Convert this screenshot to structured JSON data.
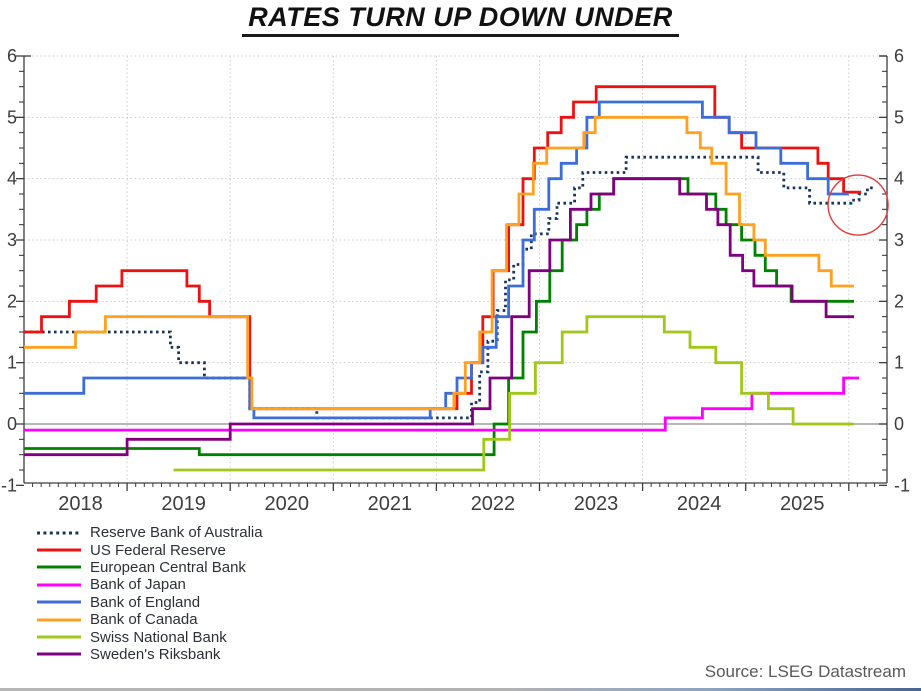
{
  "title": "RATES TURN UP DOWN UNDER",
  "source": "Source: LSEG Datastream",
  "chart_data": {
    "type": "line",
    "title": "RATES TURN UP DOWN UNDER",
    "xlabel": "",
    "ylabel": "",
    "x_range": [
      2018.0,
      2026.36
    ],
    "y_range": [
      -1,
      6
    ],
    "y_ticks": [
      -1,
      0,
      1,
      2,
      3,
      4,
      5,
      6
    ],
    "y_minor_step": 0.25,
    "x_tick_labels": [
      "2018",
      "2019",
      "2020",
      "2021",
      "2022",
      "2023",
      "2024",
      "2025"
    ],
    "grid": true,
    "zero_line": true,
    "legend_position": "bottom-left",
    "grid_color": "#c9c9c9",
    "axis_color": "#3d3d3d",
    "zero_line_color": "#8a8a8a",
    "annotation_circle": {
      "x_year": 2026.09,
      "y_value": 3.57,
      "radius_px": 30,
      "color": "#e23a3a"
    },
    "series": [
      {
        "name": "Reserve Bank of Australia",
        "color": "#17365d",
        "line_style": "dotted",
        "end": 2026.25,
        "points": [
          [
            2018.0,
            1.5
          ],
          [
            2019.42,
            1.25
          ],
          [
            2019.5,
            1.0
          ],
          [
            2019.75,
            0.75
          ],
          [
            2020.19,
            0.25
          ],
          [
            2020.84,
            0.1
          ],
          [
            2022.34,
            0.35
          ],
          [
            2022.42,
            0.85
          ],
          [
            2022.5,
            1.35
          ],
          [
            2022.59,
            1.85
          ],
          [
            2022.67,
            2.35
          ],
          [
            2022.75,
            2.6
          ],
          [
            2022.84,
            2.85
          ],
          [
            2022.92,
            3.1
          ],
          [
            2023.09,
            3.35
          ],
          [
            2023.17,
            3.6
          ],
          [
            2023.34,
            3.85
          ],
          [
            2023.42,
            4.1
          ],
          [
            2023.84,
            4.35
          ],
          [
            2025.12,
            4.1
          ],
          [
            2025.37,
            3.85
          ],
          [
            2025.62,
            3.6
          ],
          [
            2026.02,
            3.65
          ],
          [
            2026.1,
            3.75
          ],
          [
            2026.18,
            3.85
          ]
        ]
      },
      {
        "name": "US Federal Reserve",
        "color": "#ee1111",
        "line_style": "solid",
        "end": 2026.12,
        "points": [
          [
            2018.0,
            1.5
          ],
          [
            2018.17,
            1.75
          ],
          [
            2018.44,
            2.0
          ],
          [
            2018.7,
            2.25
          ],
          [
            2018.95,
            2.5
          ],
          [
            2019.58,
            2.25
          ],
          [
            2019.7,
            2.0
          ],
          [
            2019.8,
            1.75
          ],
          [
            2020.19,
            0.25
          ],
          [
            2022.2,
            0.5
          ],
          [
            2022.34,
            1.0
          ],
          [
            2022.45,
            1.75
          ],
          [
            2022.55,
            2.5
          ],
          [
            2022.7,
            3.25
          ],
          [
            2022.84,
            4.0
          ],
          [
            2022.95,
            4.5
          ],
          [
            2023.08,
            4.75
          ],
          [
            2023.21,
            5.0
          ],
          [
            2023.33,
            5.25
          ],
          [
            2023.55,
            5.5
          ],
          [
            2024.7,
            5.0
          ],
          [
            2024.84,
            4.75
          ],
          [
            2024.96,
            4.5
          ],
          [
            2025.7,
            4.25
          ],
          [
            2025.8,
            4.0
          ],
          [
            2025.95,
            3.78
          ]
        ]
      },
      {
        "name": "European Central Bank",
        "color": "#008200",
        "line_style": "solid",
        "end": 2026.05,
        "points": [
          [
            2018.0,
            -0.4
          ],
          [
            2019.7,
            -0.5
          ],
          [
            2022.56,
            0.0
          ],
          [
            2022.7,
            0.75
          ],
          [
            2022.84,
            1.5
          ],
          [
            2022.97,
            2.0
          ],
          [
            2023.1,
            2.5
          ],
          [
            2023.22,
            3.0
          ],
          [
            2023.36,
            3.25
          ],
          [
            2023.46,
            3.5
          ],
          [
            2023.58,
            3.75
          ],
          [
            2023.72,
            4.0
          ],
          [
            2024.44,
            3.75
          ],
          [
            2024.71,
            3.5
          ],
          [
            2024.81,
            3.25
          ],
          [
            2024.96,
            3.0
          ],
          [
            2025.09,
            2.75
          ],
          [
            2025.19,
            2.5
          ],
          [
            2025.3,
            2.25
          ],
          [
            2025.44,
            2.0
          ]
        ]
      },
      {
        "name": "Bank of Japan",
        "color": "#ff00ff",
        "line_style": "solid",
        "end": 2026.1,
        "points": [
          [
            2018.0,
            -0.1
          ],
          [
            2024.22,
            0.1
          ],
          [
            2024.58,
            0.25
          ],
          [
            2025.06,
            0.5
          ],
          [
            2025.95,
            0.75
          ]
        ]
      },
      {
        "name": "Bank of England",
        "color": "#3d6dd9",
        "line_style": "solid",
        "end": 2026.0,
        "points": [
          [
            2018.0,
            0.5
          ],
          [
            2018.58,
            0.75
          ],
          [
            2020.19,
            0.25
          ],
          [
            2020.23,
            0.1
          ],
          [
            2021.94,
            0.25
          ],
          [
            2022.09,
            0.5
          ],
          [
            2022.2,
            0.75
          ],
          [
            2022.34,
            1.0
          ],
          [
            2022.45,
            1.25
          ],
          [
            2022.58,
            1.75
          ],
          [
            2022.7,
            2.25
          ],
          [
            2022.84,
            3.0
          ],
          [
            2022.95,
            3.5
          ],
          [
            2023.09,
            4.0
          ],
          [
            2023.21,
            4.25
          ],
          [
            2023.36,
            4.5
          ],
          [
            2023.46,
            5.0
          ],
          [
            2023.58,
            5.25
          ],
          [
            2024.58,
            5.0
          ],
          [
            2024.84,
            4.75
          ],
          [
            2025.1,
            4.5
          ],
          [
            2025.34,
            4.25
          ],
          [
            2025.6,
            4.0
          ],
          [
            2025.8,
            3.75
          ]
        ]
      },
      {
        "name": "Bank of Canada",
        "color": "#ffa020",
        "line_style": "solid",
        "end": 2026.05,
        "points": [
          [
            2018.0,
            1.25
          ],
          [
            2018.5,
            1.5
          ],
          [
            2018.79,
            1.75
          ],
          [
            2020.17,
            0.75
          ],
          [
            2020.21,
            0.25
          ],
          [
            2022.17,
            0.5
          ],
          [
            2022.28,
            1.0
          ],
          [
            2022.42,
            1.5
          ],
          [
            2022.54,
            2.5
          ],
          [
            2022.68,
            3.25
          ],
          [
            2022.8,
            3.75
          ],
          [
            2022.94,
            4.25
          ],
          [
            2023.07,
            4.5
          ],
          [
            2023.43,
            4.75
          ],
          [
            2023.54,
            5.0
          ],
          [
            2024.43,
            4.75
          ],
          [
            2024.56,
            4.5
          ],
          [
            2024.67,
            4.25
          ],
          [
            2024.81,
            3.75
          ],
          [
            2024.94,
            3.25
          ],
          [
            2025.08,
            3.0
          ],
          [
            2025.19,
            2.75
          ],
          [
            2025.71,
            2.5
          ],
          [
            2025.83,
            2.25
          ]
        ]
      },
      {
        "name": "Swiss National Bank",
        "color": "#a0c818",
        "line_style": "solid",
        "end": 2026.05,
        "points": [
          [
            2019.45,
            -0.75
          ],
          [
            2022.46,
            -0.25
          ],
          [
            2022.71,
            0.5
          ],
          [
            2022.96,
            1.0
          ],
          [
            2023.22,
            1.5
          ],
          [
            2023.46,
            1.75
          ],
          [
            2024.21,
            1.5
          ],
          [
            2024.46,
            1.25
          ],
          [
            2024.71,
            1.0
          ],
          [
            2024.96,
            0.5
          ],
          [
            2025.22,
            0.25
          ],
          [
            2025.46,
            0.0
          ]
        ]
      },
      {
        "name": "Sweden's Riksbank",
        "color": "#800080",
        "line_style": "solid",
        "end": 2026.05,
        "points": [
          [
            2018.0,
            -0.5
          ],
          [
            2019.0,
            -0.25
          ],
          [
            2020.0,
            0.0
          ],
          [
            2022.35,
            0.25
          ],
          [
            2022.52,
            0.75
          ],
          [
            2022.73,
            1.75
          ],
          [
            2022.9,
            2.5
          ],
          [
            2023.1,
            3.0
          ],
          [
            2023.3,
            3.5
          ],
          [
            2023.5,
            3.75
          ],
          [
            2023.72,
            4.0
          ],
          [
            2024.36,
            3.75
          ],
          [
            2024.62,
            3.5
          ],
          [
            2024.73,
            3.25
          ],
          [
            2024.85,
            2.75
          ],
          [
            2024.97,
            2.5
          ],
          [
            2025.08,
            2.25
          ],
          [
            2025.45,
            2.0
          ],
          [
            2025.78,
            1.75
          ]
        ]
      }
    ]
  }
}
